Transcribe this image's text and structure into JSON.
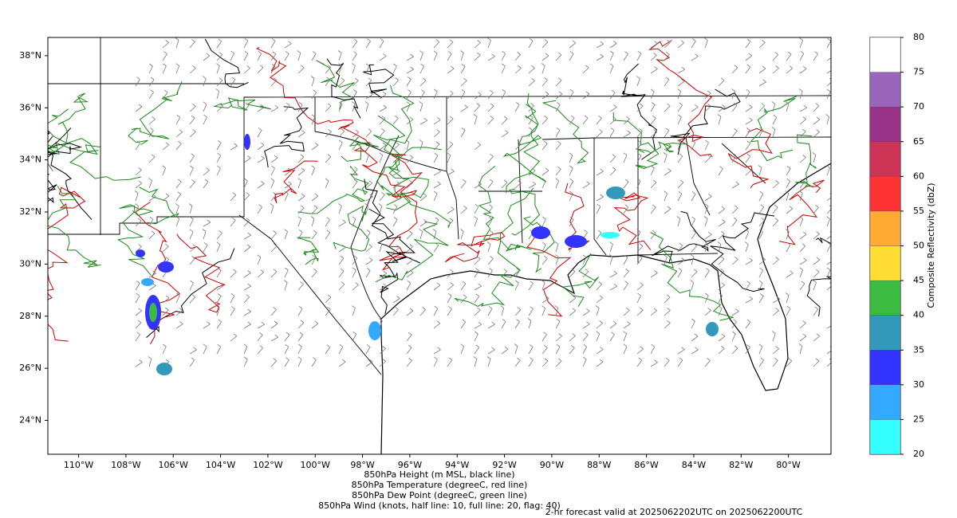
{
  "map": {
    "lon_range": [
      -111.3,
      -78.2
    ],
    "lat_range": [
      22.7,
      38.7
    ],
    "lon_ticks": [
      {
        "value": -110,
        "label": "110°W"
      },
      {
        "value": -108,
        "label": "108°W"
      },
      {
        "value": -106,
        "label": "106°W"
      },
      {
        "value": -104,
        "label": "104°W"
      },
      {
        "value": -102,
        "label": "102°W"
      },
      {
        "value": -100,
        "label": "100°W"
      },
      {
        "value": -98,
        "label": "98°W"
      },
      {
        "value": -96,
        "label": "96°W"
      },
      {
        "value": -94,
        "label": "94°W"
      },
      {
        "value": -92,
        "label": "92°W"
      },
      {
        "value": -90,
        "label": "90°W"
      },
      {
        "value": -88,
        "label": "88°W"
      },
      {
        "value": -86,
        "label": "86°W"
      },
      {
        "value": -84,
        "label": "84°W"
      },
      {
        "value": -82,
        "label": "82°W"
      },
      {
        "value": -80,
        "label": "80°W"
      }
    ],
    "lat_ticks": [
      {
        "value": 38,
        "label": "38°N"
      },
      {
        "value": 36,
        "label": "36°N"
      },
      {
        "value": 34,
        "label": "34°N"
      },
      {
        "value": 32,
        "label": "32°N"
      },
      {
        "value": 30,
        "label": "30°N"
      },
      {
        "value": 28,
        "label": "28°N"
      },
      {
        "value": 26,
        "label": "26°N"
      },
      {
        "value": 24,
        "label": "24°N"
      }
    ],
    "colorbar": {
      "label": "Composite Reflectivity (dbZ)",
      "ticks": [
        20,
        25,
        30,
        35,
        40,
        45,
        50,
        55,
        60,
        65,
        70,
        75,
        80
      ],
      "colors": [
        "#33ffff",
        "#33aaff",
        "#3333ff",
        "#3399bb",
        "#3bbb40",
        "#ffdd33",
        "#ffaa33",
        "#ff3333",
        "#cc3355",
        "#993388",
        "#9966bb",
        "#ffffff"
      ]
    },
    "captions": [
      {
        "text": "850hPa Height (m MSL, black line)",
        "color": "#000000"
      },
      {
        "text": "850hPa Temperature (degreeC, red line)",
        "color": "#ff0000"
      },
      {
        "text": "850hPa Dew Point (degreeC, green line)",
        "color": "#008000"
      },
      {
        "text": "850hPa Wind (knots, half line: 10, full line: 20, flag: 40)",
        "color": "#808080"
      }
    ],
    "valid_note": {
      "text": "2-hr forecast valid at 2025062202UTC on 2025062200UTC",
      "color": "#ff0000"
    }
  }
}
